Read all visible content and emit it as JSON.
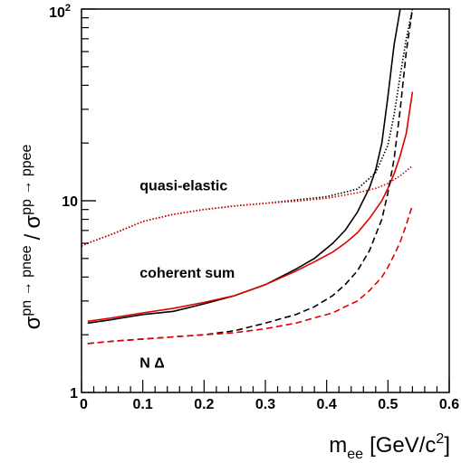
{
  "chart_data": {
    "type": "line",
    "xlabel": {
      "base": "m",
      "sub": "ee",
      "unit_pre": "[GeV/c",
      "unit_sup": "2",
      "unit_post": "]"
    },
    "ylabel": {
      "base1": "σ",
      "sup1": "pn → pnee",
      "sep": "/",
      "base2": "σ",
      "sup2": "pp → ppee"
    },
    "xlim": [
      0,
      0.6
    ],
    "ylim": [
      1,
      100
    ],
    "yscale": "log",
    "grid": false,
    "x_ticks": [
      "0",
      "0.1",
      "0.2",
      "0.3",
      "0.4",
      "0.5",
      "0.6"
    ],
    "y_ticks": [
      {
        "value": 1,
        "label": "1"
      },
      {
        "value": 10,
        "label": "10"
      },
      {
        "value": 100,
        "label": "10",
        "exp": "2"
      }
    ],
    "annotations": [
      {
        "text": "quasi-elastic",
        "x": 0.095,
        "y": 11.3
      },
      {
        "text": "coherent sum",
        "x": 0.095,
        "y": 3.98
      },
      {
        "text": "N Δ",
        "x": 0.095,
        "y": 1.35
      }
    ],
    "series": [
      {
        "color": "#000000",
        "style": "solid",
        "x": [
          0.01,
          0.05,
          0.1,
          0.15,
          0.2,
          0.25,
          0.3,
          0.35,
          0.38,
          0.41,
          0.43,
          0.45,
          0.47,
          0.48,
          0.49,
          0.5,
          0.51,
          0.52
        ],
        "y": [
          2.3,
          2.4,
          2.55,
          2.65,
          2.9,
          3.2,
          3.65,
          4.4,
          5.0,
          6.0,
          7.0,
          8.7,
          11.7,
          14.5,
          20.0,
          35.0,
          65.0,
          100.0
        ]
      },
      {
        "color": "#e00000",
        "style": "solid",
        "x": [
          0.01,
          0.05,
          0.1,
          0.15,
          0.2,
          0.25,
          0.3,
          0.35,
          0.38,
          0.41,
          0.43,
          0.45,
          0.47,
          0.49,
          0.5,
          0.51,
          0.52,
          0.53,
          0.54
        ],
        "y": [
          2.35,
          2.45,
          2.6,
          2.75,
          2.95,
          3.2,
          3.65,
          4.3,
          4.8,
          5.4,
          6.0,
          6.8,
          8.1,
          10.0,
          11.6,
          13.8,
          17.2,
          22.5,
          37.0
        ]
      },
      {
        "color": "#000000",
        "style": "dashed",
        "x": [
          0.01,
          0.05,
          0.1,
          0.15,
          0.2,
          0.25,
          0.3,
          0.35,
          0.38,
          0.41,
          0.43,
          0.45,
          0.47,
          0.49,
          0.5,
          0.51,
          0.52,
          0.53,
          0.54
        ],
        "y": [
          1.8,
          1.85,
          1.9,
          1.95,
          2.0,
          2.1,
          2.3,
          2.55,
          2.8,
          3.2,
          3.65,
          4.3,
          5.5,
          8.0,
          11.0,
          16.5,
          30.0,
          60.0,
          100.0
        ]
      },
      {
        "color": "#e00000",
        "style": "dashed",
        "x": [
          0.01,
          0.05,
          0.1,
          0.15,
          0.2,
          0.25,
          0.3,
          0.35,
          0.38,
          0.41,
          0.43,
          0.45,
          0.47,
          0.49,
          0.5,
          0.51,
          0.52,
          0.53,
          0.54
        ],
        "y": [
          1.8,
          1.85,
          1.9,
          1.95,
          2.0,
          2.05,
          2.15,
          2.3,
          2.45,
          2.6,
          2.8,
          3.0,
          3.4,
          4.0,
          4.5,
          5.2,
          6.1,
          7.5,
          9.5
        ]
      },
      {
        "color": "#000000",
        "style": "dotted",
        "x": [
          0.0,
          0.01,
          0.05,
          0.1,
          0.15,
          0.2,
          0.25,
          0.3,
          0.35,
          0.4,
          0.45,
          0.48,
          0.5,
          0.51,
          0.52,
          0.53,
          0.54
        ],
        "y": [
          5.8,
          6.0,
          6.7,
          7.8,
          8.5,
          9.0,
          9.4,
          9.7,
          10.1,
          10.5,
          11.5,
          14.0,
          19.5,
          28.0,
          45.0,
          70.0,
          100.0
        ]
      },
      {
        "color": "#e00000",
        "style": "dotted",
        "x": [
          0.0,
          0.01,
          0.05,
          0.1,
          0.15,
          0.2,
          0.25,
          0.3,
          0.35,
          0.4,
          0.45,
          0.48,
          0.5,
          0.52,
          0.54
        ],
        "y": [
          5.8,
          6.0,
          6.7,
          7.8,
          8.5,
          9.0,
          9.4,
          9.7,
          9.95,
          10.3,
          11.0,
          11.6,
          12.3,
          13.5,
          15.2
        ]
      }
    ]
  }
}
